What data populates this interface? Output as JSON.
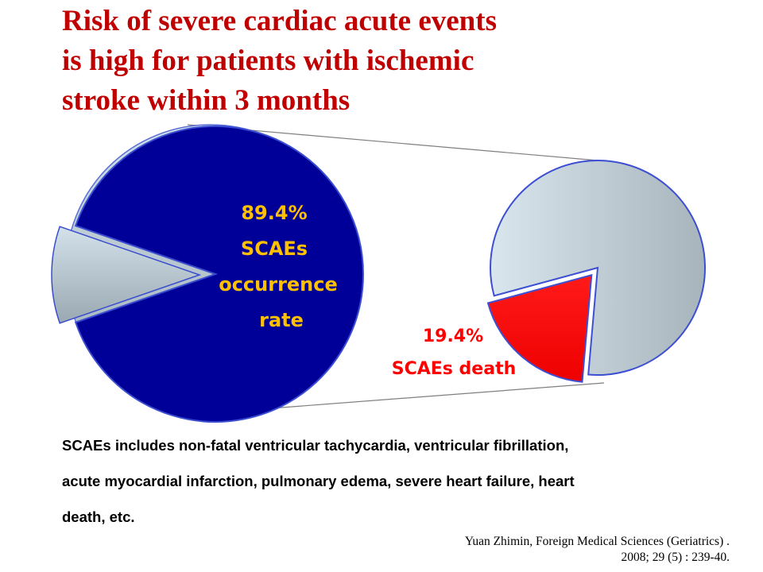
{
  "title": {
    "lines": [
      "Risk of severe cardiac acute events",
      "is high for patients with ischemic",
      "stroke within 3 months"
    ]
  },
  "colors": {
    "title": "#c00000",
    "main_slice": "#000099",
    "remainder_slice": "#c3cdd3",
    "death_slice": "#ff0000",
    "label_yellow": "#ffc000",
    "label_red": "#ff0000"
  },
  "chart_data": {
    "type": "pie",
    "charts": [
      {
        "name": "SCAEs occurrence",
        "slices": [
          {
            "label": "SCAEs occurrence rate",
            "value": 89.4,
            "color": "#000099",
            "display": "89.4%"
          },
          {
            "label": "",
            "value": 10.6,
            "color": "#c3cdd3"
          }
        ],
        "label_lines": [
          "89.4%",
          "SCAEs",
          "occurrence",
          "rate"
        ]
      },
      {
        "name": "SCAEs death",
        "slices": [
          {
            "label": "SCAEs death",
            "value": 19.4,
            "color": "#ff0000",
            "display": "19.4%"
          },
          {
            "label": "",
            "value": 80.6,
            "color": "#c3cdd3"
          }
        ],
        "label_lines": [
          "19.4%",
          "SCAEs death"
        ]
      }
    ]
  },
  "note": {
    "lines": [
      "SCAEs includes non-fatal ventricular tachycardia,  ventricular fibrillation,",
      "acute myocardial infarction,  pulmonary edema,  severe heart failure,  heart",
      "death,  etc."
    ]
  },
  "source": {
    "lines": [
      "Yuan Zhimin,  Foreign Medical Sciences (Geriatrics) .",
      "2008;  29 (5) : 239-40."
    ]
  }
}
